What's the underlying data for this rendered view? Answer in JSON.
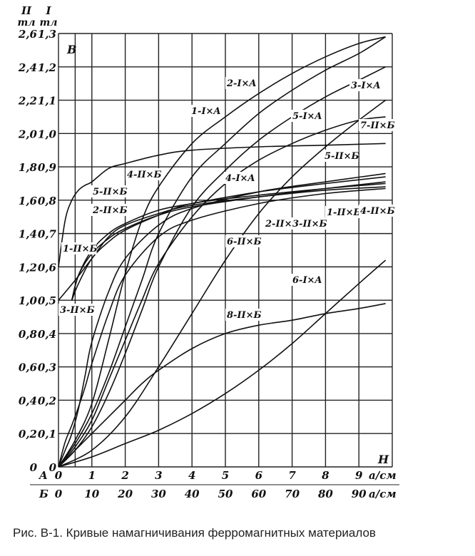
{
  "caption": "Рис. В-1. Кривые намагничивания ферромагнитных материалов",
  "chart_data": {
    "type": "line",
    "title": "",
    "ylabel": "B",
    "xlabel": "H",
    "y_axes": {
      "II": {
        "header": [
          "II",
          "тл"
        ],
        "ticks": [
          "2,6",
          "2,4",
          "2,2",
          "2,0",
          "1,8",
          "1,6",
          "1,4",
          "1,2",
          "1,0",
          "0,8",
          "0,6",
          "0,4",
          "0,2",
          "0"
        ]
      },
      "I": {
        "header": [
          "I",
          "тл"
        ],
        "ticks": [
          "1,3",
          "1,2",
          "1,1",
          "1,0",
          "0,9",
          "0,8",
          "0,7",
          "0,6",
          "0,5",
          "0,4",
          "0,3",
          "0,2",
          "0,1",
          "0"
        ]
      }
    },
    "x_axes": {
      "A": {
        "row_label": "A",
        "ticks": [
          "0",
          "1",
          "2",
          "3",
          "4",
          "5",
          "6",
          "7",
          "8",
          "9"
        ],
        "unit": "а/см"
      },
      "B": {
        "row_label": "Б",
        "ticks": [
          "0",
          "10",
          "20",
          "30",
          "40",
          "50",
          "60",
          "70",
          "80",
          "90"
        ],
        "unit": "а/см"
      }
    },
    "xlim_A": [
      0,
      10
    ],
    "ylim_I": [
      0,
      1.3
    ],
    "ylim_II": [
      0,
      2.6
    ],
    "grid": true,
    "series": [
      {
        "name": "1-II×Б",
        "axis": "II",
        "xscale": "Б",
        "x": [
          0,
          2,
          4,
          6,
          8,
          10,
          15,
          20,
          30,
          40,
          60,
          80,
          98
        ],
        "y": [
          1.2,
          1.48,
          1.6,
          1.66,
          1.69,
          1.71,
          1.79,
          1.82,
          1.87,
          1.9,
          1.92,
          1.93,
          1.94
        ]
      },
      {
        "name": "2-II×Б",
        "axis": "II",
        "xscale": "Б",
        "x": [
          4,
          6,
          10,
          15,
          20,
          30,
          40,
          60,
          80,
          98
        ],
        "y": [
          1.0,
          1.15,
          1.28,
          1.37,
          1.43,
          1.51,
          1.56,
          1.62,
          1.67,
          1.71
        ]
      },
      {
        "name": "3-II×Б",
        "axis": "II",
        "xscale": "Б",
        "x": [
          4,
          6,
          10,
          15,
          20,
          30,
          40,
          60,
          80,
          98
        ],
        "y": [
          1.0,
          1.1,
          1.25,
          1.35,
          1.42,
          1.51,
          1.58,
          1.63,
          1.67,
          1.7
        ]
      },
      {
        "name": "4-II×Б",
        "axis": "II",
        "xscale": "Б",
        "x": [
          0,
          5,
          10,
          15,
          20,
          30,
          40,
          60,
          80,
          98
        ],
        "y": [
          1.0,
          1.12,
          1.25,
          1.38,
          1.45,
          1.52,
          1.57,
          1.62,
          1.66,
          1.68
        ]
      },
      {
        "name": "5-II×Б",
        "axis": "II",
        "xscale": "Б",
        "x": [
          4,
          6,
          10,
          15,
          20,
          30,
          40,
          60,
          80,
          98
        ],
        "y": [
          1.0,
          1.15,
          1.3,
          1.4,
          1.46,
          1.54,
          1.58,
          1.65,
          1.7,
          1.74
        ]
      },
      {
        "name": "6-II×Б",
        "axis": "II",
        "xscale": "Б",
        "x": [
          0,
          2,
          4,
          6,
          8,
          10,
          15,
          20,
          30,
          40,
          60,
          80,
          98
        ],
        "y": [
          0,
          0.15,
          0.25,
          0.36,
          0.48,
          0.62,
          0.92,
          1.15,
          1.38,
          1.48,
          1.58,
          1.64,
          1.67
        ]
      },
      {
        "name": "7-II×Б",
        "axis": "II",
        "xscale": "Б",
        "x": [
          0,
          2,
          4,
          6,
          8,
          10,
          15,
          20,
          30,
          40,
          60,
          80,
          98
        ],
        "y": [
          0,
          0.1,
          0.2,
          0.35,
          0.55,
          0.75,
          1.05,
          1.25,
          1.45,
          1.55,
          1.65,
          1.71,
          1.76
        ]
      },
      {
        "name": "8-II×Б",
        "axis": "II",
        "xscale": "Б",
        "x": [
          0,
          5,
          10,
          15,
          20,
          25,
          30,
          40,
          50,
          60,
          70,
          80,
          90,
          98
        ],
        "y": [
          0,
          0.1,
          0.2,
          0.3,
          0.4,
          0.5,
          0.58,
          0.71,
          0.8,
          0.85,
          0.88,
          0.92,
          0.95,
          0.98
        ]
      },
      {
        "name": "1-I×A",
        "axis": "I",
        "xscale": "A",
        "x": [
          0,
          0.5,
          1,
          1.5,
          2,
          2.5,
          3,
          4,
          5,
          6,
          7,
          8,
          9,
          9.8
        ],
        "y": [
          0,
          0.07,
          0.16,
          0.28,
          0.42,
          0.56,
          0.7,
          0.87,
          0.97,
          1.06,
          1.13,
          1.19,
          1.24,
          1.29
        ]
      },
      {
        "name": "2-I×A",
        "axis": "I",
        "xscale": "A",
        "x": [
          0,
          0.5,
          1,
          1.5,
          2,
          2.5,
          3,
          4,
          5,
          6,
          7,
          8,
          9,
          9.8
        ],
        "y": [
          0,
          0.08,
          0.19,
          0.38,
          0.58,
          0.74,
          0.84,
          0.97,
          1.05,
          1.12,
          1.18,
          1.23,
          1.27,
          1.29
        ]
      },
      {
        "name": "3-I×A",
        "axis": "I",
        "xscale": "A",
        "x": [
          0,
          0.5,
          1,
          1.5,
          2,
          2.5,
          3,
          4,
          5,
          6,
          7,
          8,
          9,
          9.8
        ],
        "y": [
          0,
          0.05,
          0.12,
          0.22,
          0.34,
          0.47,
          0.6,
          0.78,
          0.89,
          0.98,
          1.05,
          1.11,
          1.16,
          1.2
        ]
      },
      {
        "name": "4-I×A",
        "axis": "I",
        "xscale": "A",
        "x": [
          0,
          0.5,
          1,
          1.5,
          2,
          2.5,
          3,
          4,
          5,
          6,
          7,
          8,
          9,
          9.8
        ],
        "y": [
          0,
          0.06,
          0.14,
          0.26,
          0.38,
          0.5,
          0.61,
          0.75,
          0.85,
          0.92,
          0.97,
          1.01,
          1.04,
          1.05
        ]
      },
      {
        "name": "5-I×A",
        "axis": "I",
        "xscale": "A",
        "x": [
          0,
          1,
          2,
          3,
          4,
          5,
          6,
          7,
          8,
          9,
          9.8
        ],
        "y": [
          0,
          0.05,
          0.15,
          0.3,
          0.46,
          0.62,
          0.76,
          0.87,
          0.96,
          1.04,
          1.1
        ]
      },
      {
        "name": "6-I×A",
        "axis": "I",
        "xscale": "A",
        "x": [
          0,
          1,
          2,
          3,
          4,
          5,
          6,
          7,
          8,
          9,
          9.8
        ],
        "y": [
          0,
          0.03,
          0.07,
          0.11,
          0.16,
          0.22,
          0.29,
          0.37,
          0.46,
          0.55,
          0.62
        ]
      }
    ],
    "annotations": [
      "2-I×A",
      "3-I×A",
      "1-I×A",
      "5-I×A",
      "7-II×Б",
      "5-II×Б",
      "4-II×Б",
      "4-I×A",
      "5-II×Б",
      "2-II×Б",
      "2-II×Б",
      "3-II×Б",
      "1-II×Б",
      "4-II×Б",
      "6-II×Б",
      "1-II×Б",
      "3-II×Б",
      "6-I×A",
      "8-II×Б"
    ]
  }
}
